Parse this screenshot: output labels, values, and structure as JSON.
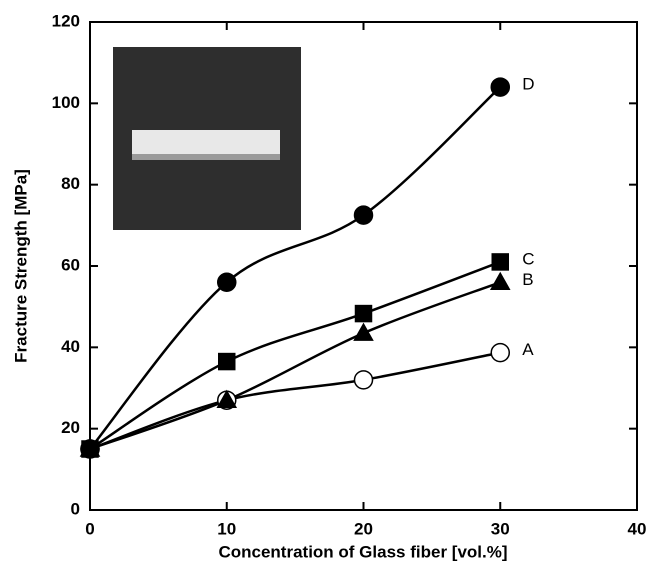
{
  "chart_data": {
    "type": "line",
    "xlabel": "Concentration of Glass fiber [vol.%]",
    "ylabel": "Fracture Strength [MPa]",
    "x": [
      0,
      10,
      20,
      30
    ],
    "series": [
      {
        "name": "A",
        "color": "#000000",
        "marker": "circle",
        "marker_fill": "#ffffff",
        "values": [
          15,
          27,
          32,
          38.7
        ]
      },
      {
        "name": "B",
        "color": "#000000",
        "marker": "triangle",
        "marker_fill": "#000000",
        "values": [
          15,
          27,
          43.5,
          56
        ]
      },
      {
        "name": "C",
        "color": "#000000",
        "marker": "square",
        "marker_fill": "#000000",
        "values": [
          15,
          36.5,
          48.3,
          61
        ]
      },
      {
        "name": "D",
        "color": "#000000",
        "marker": "circle",
        "marker_fill": "#000000",
        "values": [
          15,
          56,
          72.5,
          104
        ]
      }
    ],
    "xlim": [
      0,
      40
    ],
    "xticks": [
      0,
      10,
      20,
      30,
      40
    ],
    "ylim": [
      0,
      120
    ],
    "yticks": [
      0,
      20,
      40,
      60,
      80,
      100,
      120
    ],
    "grid": false
  }
}
